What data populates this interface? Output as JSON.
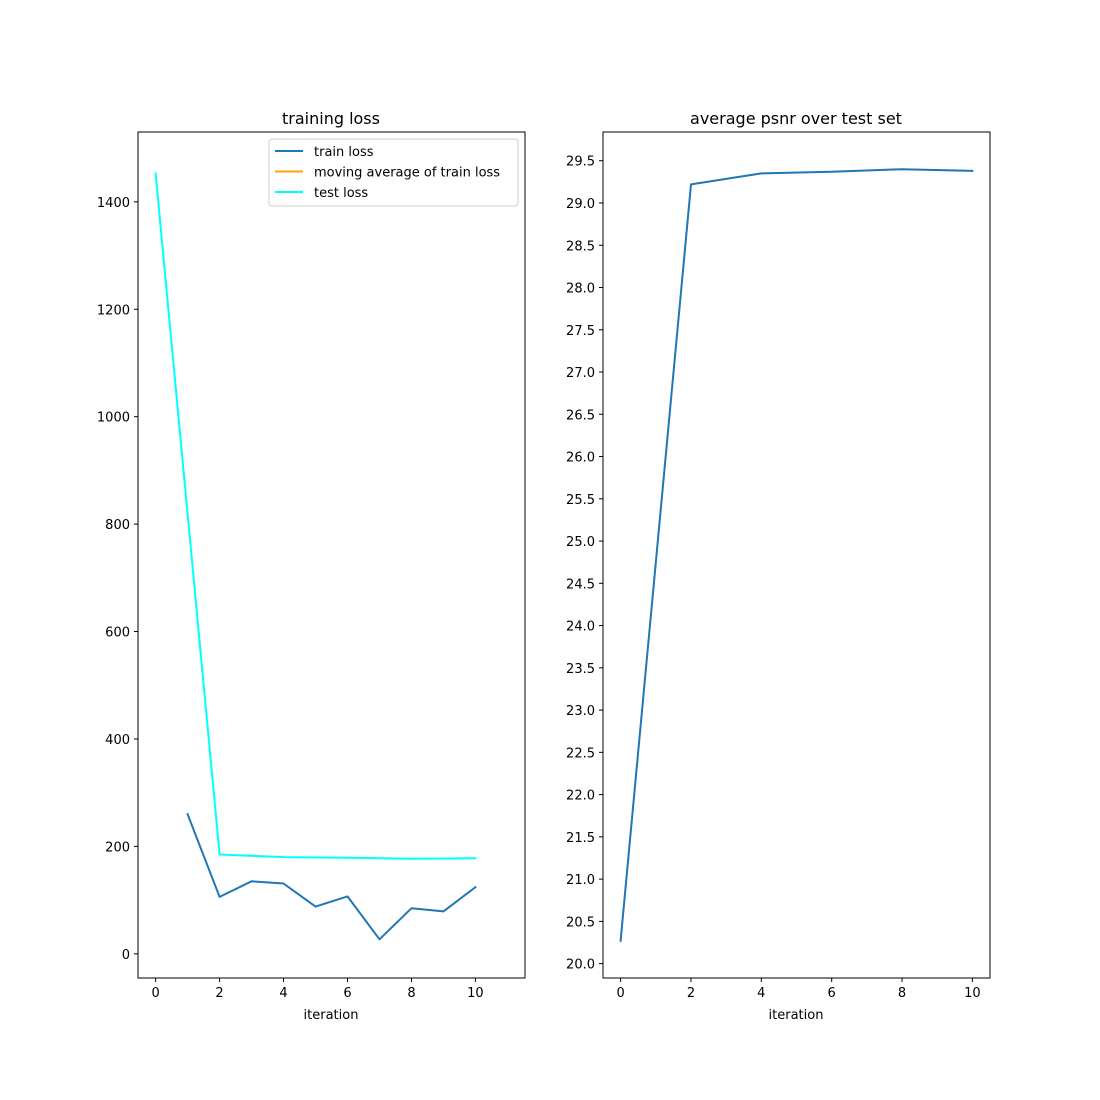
{
  "chart_data": [
    {
      "type": "line",
      "title": "training loss",
      "xlabel": "iteration",
      "ylabel": "",
      "xlim": [
        -0.55,
        11.55
      ],
      "ylim": [
        -45,
        1530
      ],
      "xticks": [
        0,
        2,
        4,
        6,
        8,
        10
      ],
      "yticks": [
        0,
        200,
        400,
        600,
        800,
        1000,
        1200,
        1400
      ],
      "grid": false,
      "legend": {
        "position": "top-right"
      },
      "series": [
        {
          "name": "train loss",
          "color": "#1f77b4",
          "x": [
            1,
            2,
            3,
            4,
            5,
            6,
            7,
            8,
            9,
            10
          ],
          "y": [
            260,
            106,
            135,
            131,
            88,
            107,
            27,
            85,
            79,
            124
          ]
        },
        {
          "name": "moving average of train loss",
          "color": "#ffa500",
          "x": [],
          "y": []
        },
        {
          "name": "test loss",
          "color": "#00ffff",
          "x": [
            0,
            2,
            4,
            6,
            8,
            10
          ],
          "y": [
            1453,
            185,
            180,
            179,
            177,
            178
          ]
        }
      ]
    },
    {
      "type": "line",
      "title": "average psnr over test set",
      "xlabel": "iteration",
      "ylabel": "",
      "xlim": [
        -0.5,
        10.5
      ],
      "ylim": [
        19.83,
        29.84
      ],
      "xticks": [
        0,
        2,
        4,
        6,
        8,
        10
      ],
      "yticks": [
        20.0,
        20.5,
        21.0,
        21.5,
        22.0,
        22.5,
        23.0,
        23.5,
        24.0,
        24.5,
        25.0,
        25.5,
        26.0,
        26.5,
        27.0,
        27.5,
        28.0,
        28.5,
        29.0,
        29.5
      ],
      "grid": false,
      "series": [
        {
          "color": "#1f77b4",
          "x": [
            0,
            2,
            4,
            6,
            8,
            10
          ],
          "y": [
            20.27,
            29.22,
            29.35,
            29.37,
            29.4,
            29.38
          ]
        }
      ]
    }
  ]
}
